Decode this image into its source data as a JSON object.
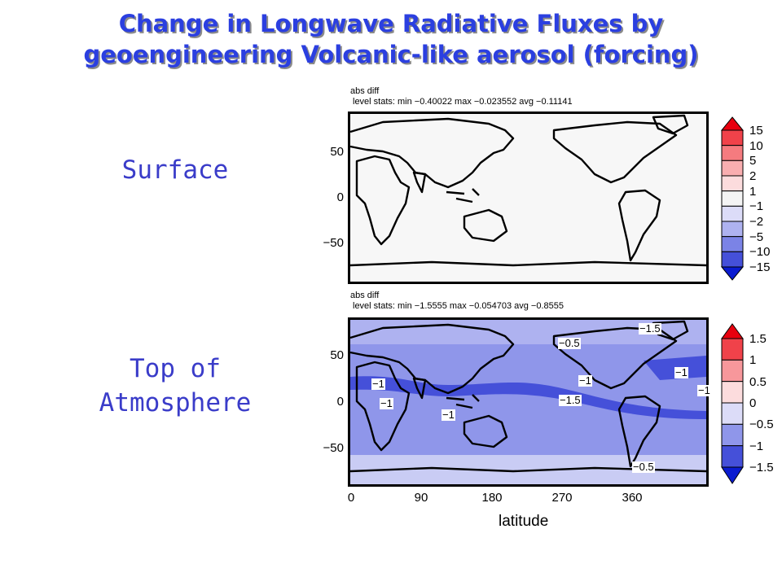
{
  "slide": {
    "title_line1": "Change in Longwave Radiative Fluxes by",
    "title_line2": "geoengineering Volcanic-like aerosol (forcing)"
  },
  "labels": {
    "surface": "Surface",
    "toa_line1": "Top of",
    "toa_line2": "Atmosphere"
  },
  "panels": [
    {
      "header1": "abs diff",
      "header2": "level stats:  min −0.40022 max −0.023552 avg −0.11141",
      "yticks": [
        "50",
        "0",
        "−50"
      ],
      "colorbar": [
        "15",
        "10",
        "5",
        "2",
        "1",
        "−1",
        "−2",
        "−5",
        "−10",
        "−15"
      ],
      "colors": [
        "#e8000e",
        "#f0424a",
        "#f57b7f",
        "#f9aeb0",
        "#fcdcdd",
        "#f4f4f4",
        "#dcdcf8",
        "#aeb2f0",
        "#7b83e6",
        "#4550d9",
        "#0a1bd0"
      ]
    },
    {
      "header1": "abs diff",
      "header2": "level stats:  min −1.5555 max −0.054703 avg −0.8555",
      "yticks": [
        "50",
        "0",
        "−50"
      ],
      "colorbar": [
        "1.5",
        "1",
        "0.5",
        "0",
        "−0.5",
        "−1",
        "−1.5"
      ],
      "colors": [
        "#e8000e",
        "#f0424a",
        "#f7979b",
        "#fcdcdd",
        "#dcdcf8",
        "#8f96ea",
        "#4550d9",
        "#0a1bd0"
      ],
      "contour_labels": [
        "−1",
        "−1",
        "−1",
        "−0.5",
        "−1",
        "−1.5",
        "−1",
        "−1",
        "−1.5",
        "−0.5"
      ],
      "xticks": [
        "0",
        "90",
        "180",
        "270",
        "360"
      ],
      "xlabel": "latitude"
    }
  ]
}
